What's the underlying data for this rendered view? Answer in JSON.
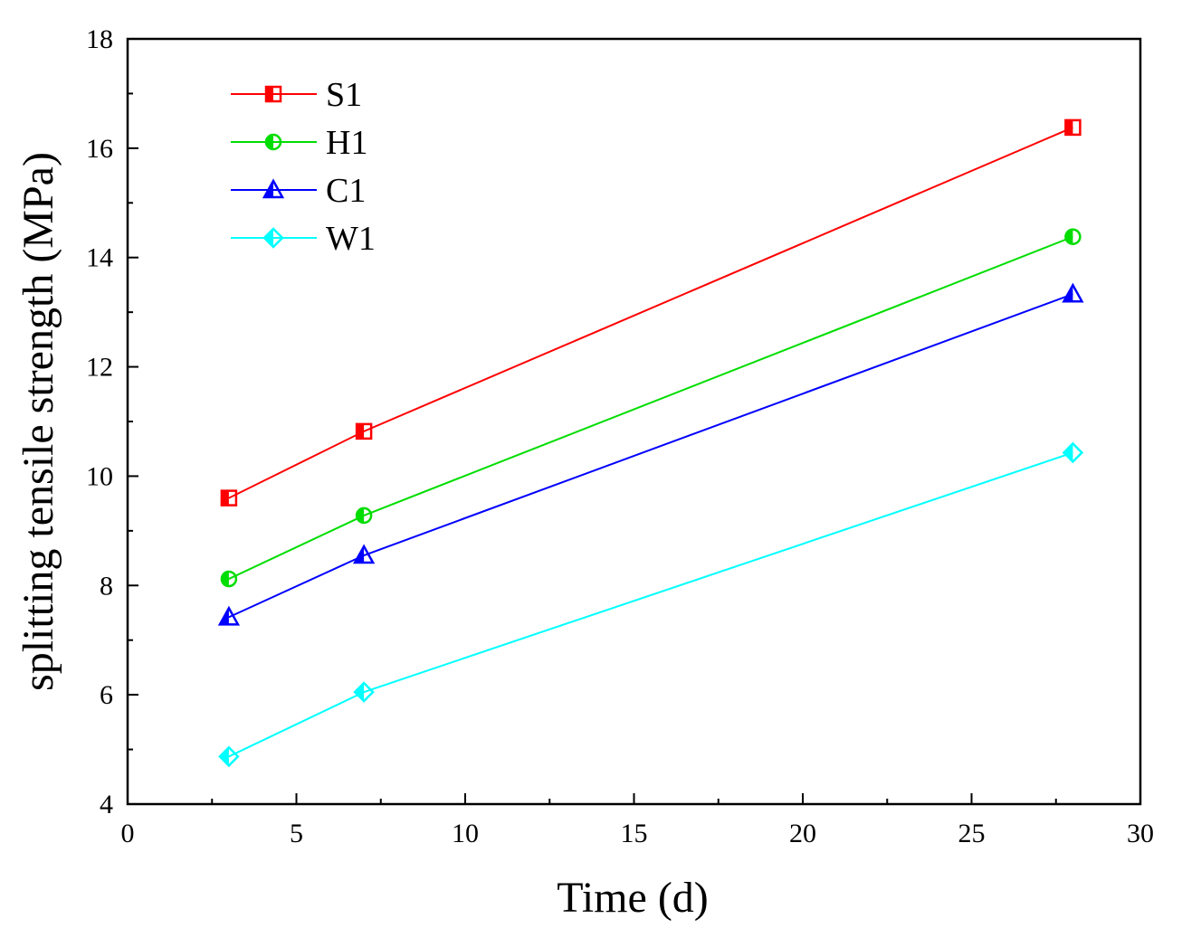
{
  "chart_data": {
    "type": "line",
    "title": "",
    "xlabel": "Time (d)",
    "ylabel": "splitting tensile strength (MPa)",
    "xlim": [
      0,
      30
    ],
    "ylim": [
      4,
      18
    ],
    "xticks": [
      0,
      5,
      10,
      15,
      20,
      25,
      30
    ],
    "yticks": [
      4,
      6,
      8,
      10,
      12,
      14,
      16,
      18
    ],
    "x": [
      3,
      7,
      28
    ],
    "grid": false,
    "legend_position": "top-left",
    "series": [
      {
        "name": "S1",
        "values": [
          9.6,
          10.82,
          16.38
        ],
        "color": "#ff0000",
        "marker": "square-half"
      },
      {
        "name": "H1",
        "values": [
          8.12,
          9.28,
          14.38
        ],
        "color": "#00dd00",
        "marker": "circle-half"
      },
      {
        "name": "C1",
        "values": [
          7.42,
          8.55,
          13.33
        ],
        "color": "#0000ff",
        "marker": "triangle-half"
      },
      {
        "name": "W1",
        "values": [
          4.87,
          6.05,
          10.43
        ],
        "color": "#00ffff",
        "marker": "diamond-half"
      }
    ]
  }
}
